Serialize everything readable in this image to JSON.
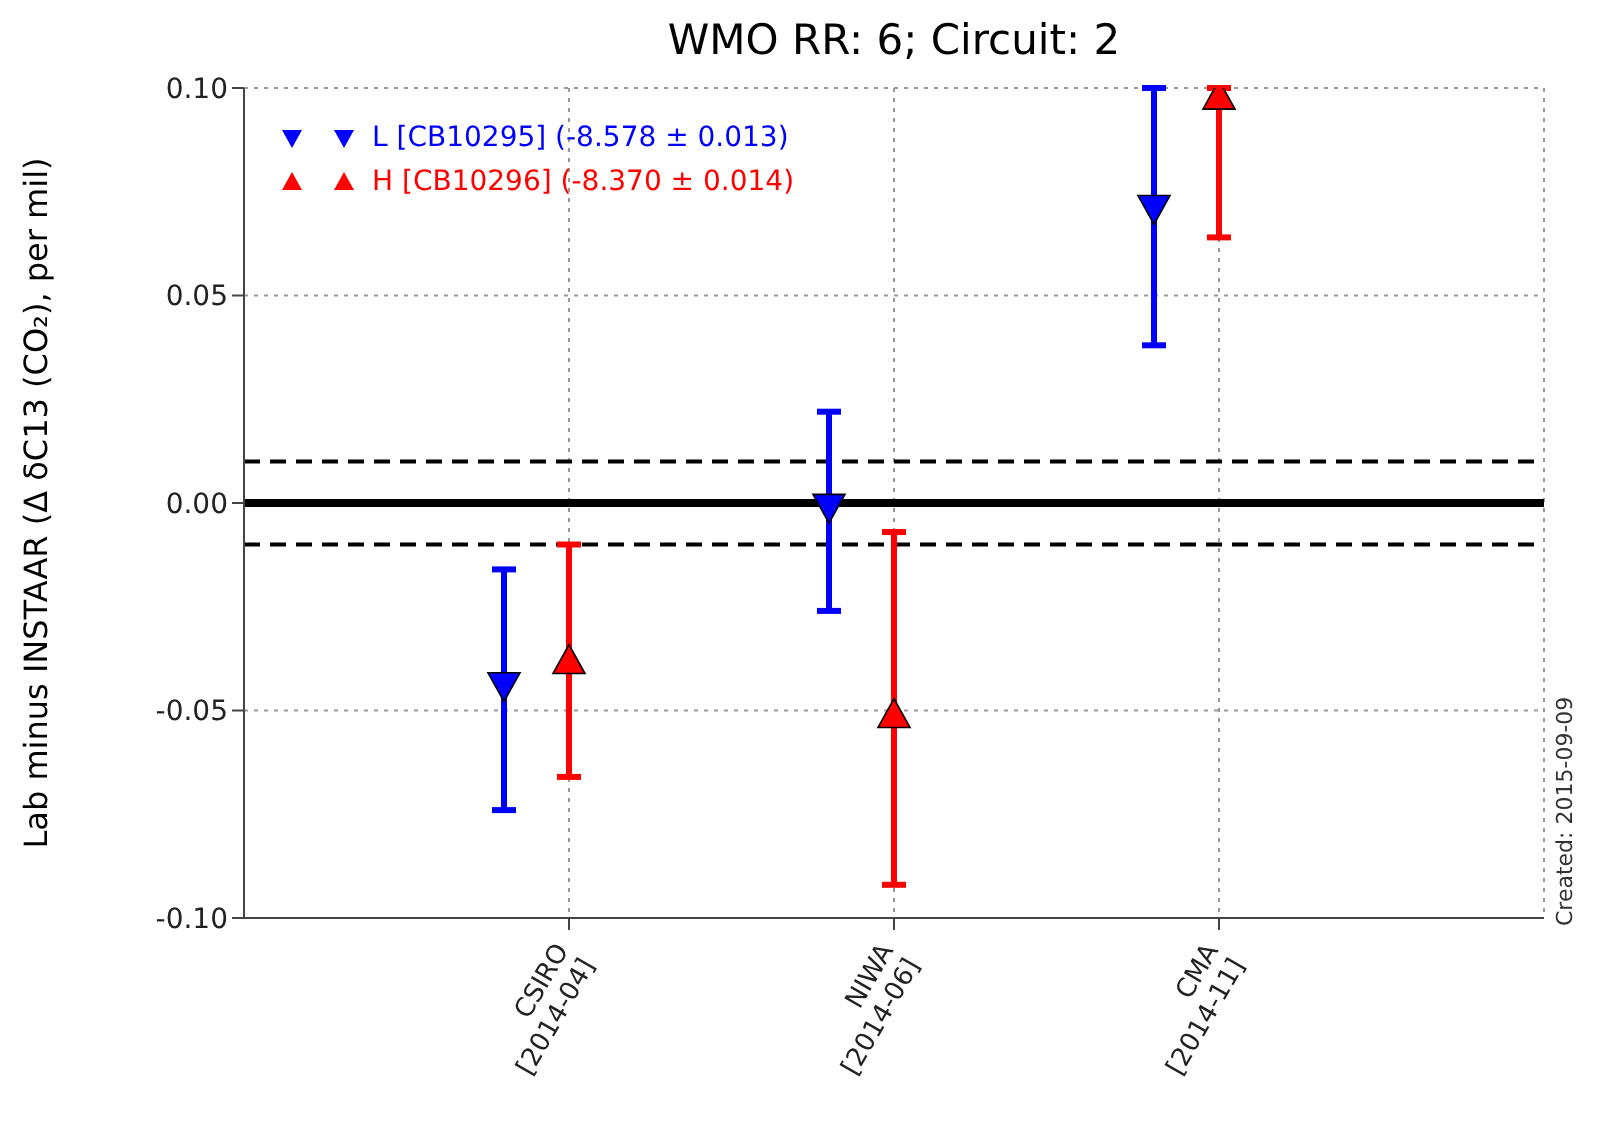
{
  "chart_data": {
    "type": "scatter",
    "title": "WMO RR: 6; Circuit: 2",
    "ylabel": "Lab minus INSTAAR (Δ δC13 (CO₂), per mil)",
    "categories": [
      "CSIRO\n[2014-04]",
      "NIWA\n[2014-06]",
      "CMA\n[2014-11]"
    ],
    "ylim": [
      -0.1,
      0.1
    ],
    "yticks": [
      {
        "value": -0.1,
        "label": "-0.10"
      },
      {
        "value": -0.05,
        "label": "-0.05"
      },
      {
        "value": 0,
        "label": "0.00"
      },
      {
        "value": 0.05,
        "label": "0.05"
      },
      {
        "value": 0.1,
        "label": "0.10"
      }
    ],
    "series": [
      {
        "name": "L [CB10295] (-8.578 ± 0.013)",
        "color": "#0000ff",
        "marker": "triangle-down",
        "values": [
          -0.044,
          -0.001,
          0.071
        ],
        "errors": [
          [
            -0.074,
            -0.016
          ],
          [
            -0.026,
            0.022
          ],
          [
            0.038,
            0.1
          ]
        ]
      },
      {
        "name": "H [CB10296] (-8.370 ± 0.014)",
        "color": "#ff0000",
        "marker": "triangle",
        "values": [
          -0.038,
          -0.051,
          0.098
        ],
        "errors": [
          [
            -0.066,
            -0.01
          ],
          [
            -0.092,
            -0.007
          ],
          [
            0.064,
            0.1
          ]
        ]
      }
    ],
    "ref_lines": [
      {
        "axis": "y",
        "value": 0,
        "color": "#000000",
        "line_style": "solid"
      },
      {
        "axis": "y",
        "value": 0.01,
        "color": "#000000",
        "line_style": "dashed"
      },
      {
        "axis": "y",
        "value": -0.01,
        "color": "#000000",
        "line_style": "dashed"
      }
    ],
    "grid": true,
    "legend": "top left",
    "annotations": [
      "Created: 2015-09-09"
    ]
  }
}
